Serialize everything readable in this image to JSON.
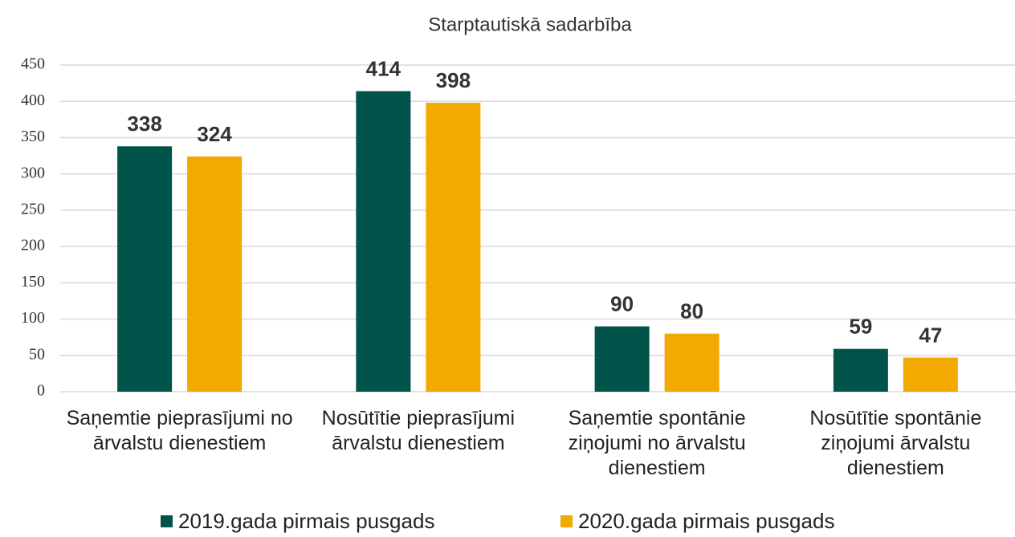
{
  "chart_data": {
    "type": "bar",
    "title": "Starptautiskā sadarbība",
    "categories": [
      "Saņemtie pieprasījumi no ārvalstu dienestiem",
      "Nosūtītie pieprasījumi ārvalstu dienestiem",
      "Saņemtie spontānie ziņojumi no ārvalstu dienestiem",
      "Nosūtītie spontānie ziņojumi ārvalstu dienestiem"
    ],
    "series": [
      {
        "name": "2019.gada pirmais pusgads",
        "color": "#00544a",
        "values": [
          338,
          414,
          90,
          59
        ]
      },
      {
        "name": "2020.gada pirmais pusgads",
        "color": "#f2a900",
        "values": [
          324,
          398,
          80,
          47
        ]
      }
    ],
    "ylim": [
      0,
      450
    ],
    "yticks": [
      0,
      50,
      100,
      150,
      200,
      250,
      300,
      350,
      400,
      450
    ],
    "grid": true,
    "legend": "bottom"
  }
}
